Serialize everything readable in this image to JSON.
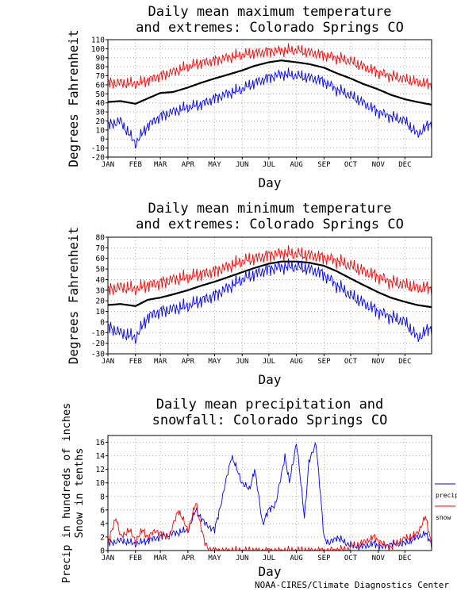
{
  "chart_data": [
    {
      "type": "line",
      "title": [
        "Daily mean maximum temperature",
        "and extremes: Colorado Springs CO"
      ],
      "xlabel": "Day",
      "ylabel": "Degrees Fahrenheit",
      "ylim": [
        -20,
        110
      ],
      "yticks": [
        -20,
        -10,
        0,
        10,
        20,
        30,
        40,
        50,
        60,
        70,
        80,
        90,
        100,
        110
      ],
      "grid": true,
      "months": [
        "JAN",
        "FEB",
        "MAR",
        "APR",
        "MAY",
        "JUN",
        "JUL",
        "AUG",
        "SEP",
        "OCT",
        "NOV",
        "DEC"
      ],
      "series": [
        {
          "color": "#ff0000",
          "x": [
            1,
            15,
            32,
            46,
            60,
            74,
            91,
            105,
            121,
            135,
            152,
            166,
            182,
            196,
            213,
            227,
            244,
            258,
            274,
            288,
            305,
            319,
            335,
            349,
            365
          ],
          "values": [
            62,
            62,
            61,
            65,
            70,
            74,
            80,
            84,
            87,
            90,
            93,
            95,
            97,
            98,
            98,
            96,
            93,
            90,
            86,
            80,
            74,
            70,
            66,
            63,
            60
          ]
        },
        {
          "color": "#000000",
          "x": [
            1,
            15,
            32,
            46,
            60,
            74,
            91,
            105,
            121,
            135,
            152,
            166,
            182,
            196,
            213,
            227,
            244,
            258,
            274,
            288,
            305,
            319,
            335,
            349,
            365
          ],
          "values": [
            41,
            42,
            39,
            45,
            51,
            52,
            57,
            62,
            67,
            71,
            76,
            81,
            85,
            87,
            85,
            83,
            79,
            73,
            67,
            61,
            55,
            49,
            44,
            41,
            38
          ]
        },
        {
          "color": "#0000ff",
          "x": [
            1,
            15,
            32,
            46,
            60,
            74,
            91,
            105,
            121,
            135,
            152,
            166,
            182,
            196,
            213,
            227,
            244,
            258,
            274,
            288,
            305,
            319,
            335,
            349,
            365
          ],
          "values": [
            15,
            20,
            -5,
            15,
            25,
            30,
            35,
            38,
            45,
            50,
            55,
            62,
            68,
            72,
            70,
            68,
            64,
            55,
            48,
            40,
            30,
            25,
            20,
            5,
            18
          ]
        }
      ]
    },
    {
      "type": "line",
      "title": [
        "Daily mean minimum temperature",
        "and extremes: Colorado Springs CO"
      ],
      "xlabel": "Day",
      "ylabel": "Degrees Fahrenheit",
      "ylim": [
        -30,
        80
      ],
      "yticks": [
        -30,
        -20,
        -10,
        0,
        10,
        20,
        30,
        40,
        50,
        60,
        70,
        80
      ],
      "grid": true,
      "months": [
        "JAN",
        "FEB",
        "MAR",
        "APR",
        "MAY",
        "JUN",
        "JUL",
        "AUG",
        "SEP",
        "OCT",
        "NOV",
        "DEC"
      ],
      "series": [
        {
          "color": "#ff0000",
          "x": [
            1,
            15,
            32,
            46,
            60,
            74,
            91,
            105,
            121,
            135,
            152,
            166,
            182,
            196,
            213,
            227,
            244,
            258,
            274,
            288,
            305,
            319,
            335,
            349,
            365
          ],
          "values": [
            30,
            33,
            31,
            35,
            37,
            40,
            42,
            45,
            48,
            52,
            57,
            60,
            63,
            65,
            64,
            63,
            61,
            58,
            53,
            48,
            43,
            38,
            35,
            32,
            32
          ]
        },
        {
          "color": "#000000",
          "x": [
            1,
            15,
            32,
            46,
            60,
            74,
            91,
            105,
            121,
            135,
            152,
            166,
            182,
            196,
            213,
            227,
            244,
            258,
            274,
            288,
            305,
            319,
            335,
            349,
            365
          ],
          "values": [
            16,
            17,
            15,
            21,
            23,
            26,
            30,
            34,
            38,
            42,
            47,
            51,
            55,
            57,
            57,
            56,
            53,
            48,
            41,
            35,
            28,
            23,
            19,
            16,
            14
          ]
        },
        {
          "color": "#0000ff",
          "x": [
            1,
            15,
            32,
            46,
            60,
            74,
            91,
            105,
            121,
            135,
            152,
            166,
            182,
            196,
            213,
            227,
            244,
            258,
            274,
            288,
            305,
            319,
            335,
            349,
            365
          ],
          "values": [
            -5,
            -10,
            -15,
            5,
            10,
            12,
            15,
            20,
            25,
            32,
            40,
            45,
            50,
            52,
            52,
            50,
            45,
            35,
            25,
            18,
            10,
            5,
            0,
            -15,
            -5
          ]
        }
      ]
    },
    {
      "type": "line",
      "title": [
        "Daily mean precipitation and",
        "snowfall: Colorado Springs CO"
      ],
      "xlabel": "Day",
      "ylabel": [
        "Precip in hundreds of inches",
        "Snow in tenths"
      ],
      "ylim": [
        0,
        17
      ],
      "yticks": [
        0,
        2,
        4,
        6,
        8,
        10,
        12,
        14,
        16
      ],
      "grid": true,
      "months": [
        "JAN",
        "FEB",
        "MAR",
        "APR",
        "MAY",
        "JUN",
        "JUL",
        "AUG",
        "SEP",
        "OCT",
        "NOV",
        "DEC"
      ],
      "legend": "right",
      "series": [
        {
          "name": "precip",
          "color": "#0000ff",
          "x": [
            1,
            15,
            32,
            46,
            60,
            74,
            91,
            100,
            110,
            121,
            130,
            140,
            152,
            160,
            166,
            175,
            182,
            190,
            200,
            205,
            213,
            222,
            227,
            235,
            244,
            250,
            258,
            270,
            285,
            300,
            310,
            320,
            335,
            349,
            358,
            365
          ],
          "values": [
            1,
            1.5,
            1,
            1.5,
            2,
            2.5,
            3,
            6,
            4,
            3,
            8,
            14,
            10,
            9,
            12,
            4,
            6,
            7,
            14,
            10,
            16,
            5,
            13,
            16,
            2,
            1,
            2,
            1,
            0.5,
            1,
            0.5,
            1,
            1,
            2,
            2.5,
            1
          ]
        },
        {
          "name": "snow",
          "color": "#ff0000",
          "x": [
            1,
            10,
            15,
            25,
            32,
            40,
            46,
            55,
            60,
            70,
            80,
            91,
            100,
            110,
            115,
            121,
            135,
            152,
            182,
            213,
            244,
            270,
            285,
            300,
            310,
            320,
            330,
            340,
            349,
            358,
            365
          ],
          "values": [
            1,
            5,
            2,
            3,
            1.5,
            3,
            2,
            3,
            2.5,
            2,
            6,
            3,
            7,
            1,
            0.3,
            0,
            0,
            0,
            0,
            0,
            0,
            0.2,
            1,
            2,
            1,
            0.5,
            1.5,
            2,
            2.5,
            5,
            1
          ]
        }
      ]
    }
  ],
  "footer": "NOAA-CIRES/Climate Diagnostics Center"
}
